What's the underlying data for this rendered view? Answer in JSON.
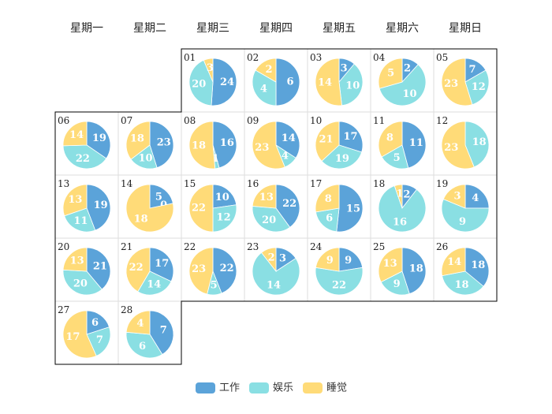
{
  "chart_data": {
    "type": "pie",
    "title": "",
    "weekdays": [
      "星期一",
      "星期二",
      "星期三",
      "星期四",
      "星期五",
      "星期六",
      "星期日"
    ],
    "legend_position": "bottom-center",
    "series": [
      {
        "name": "工作",
        "color": "#5BA3D9"
      },
      {
        "name": "娱乐",
        "color": "#8ADFE3"
      },
      {
        "name": "睡觉",
        "color": "#FFDB78"
      }
    ],
    "days": [
      {
        "day": "01",
        "values": [
          24,
          20,
          3
        ]
      },
      {
        "day": "02",
        "values": [
          6,
          4,
          2
        ]
      },
      {
        "day": "03",
        "values": [
          3,
          10,
          14
        ]
      },
      {
        "day": "04",
        "values": [
          2,
          10,
          5
        ]
      },
      {
        "day": "05",
        "values": [
          7,
          12,
          23
        ]
      },
      {
        "day": "06",
        "values": [
          19,
          22,
          14
        ]
      },
      {
        "day": "07",
        "values": [
          23,
          10,
          18
        ]
      },
      {
        "day": "08",
        "values": [
          16,
          1,
          18
        ]
      },
      {
        "day": "09",
        "values": [
          14,
          4,
          23
        ]
      },
      {
        "day": "10",
        "values": [
          17,
          19,
          21
        ]
      },
      {
        "day": "11",
        "values": [
          11,
          5,
          8
        ]
      },
      {
        "day": "12",
        "values": [
          0,
          18,
          23
        ]
      },
      {
        "day": "13",
        "values": [
          19,
          11,
          13
        ]
      },
      {
        "day": "14",
        "values": [
          5,
          0,
          18
        ]
      },
      {
        "day": "15",
        "values": [
          10,
          12,
          22
        ]
      },
      {
        "day": "16",
        "values": [
          22,
          20,
          13
        ]
      },
      {
        "day": "17",
        "values": [
          15,
          6,
          8
        ]
      },
      {
        "day": "18",
        "values": [
          2,
          16,
          1
        ]
      },
      {
        "day": "19",
        "values": [
          4,
          9,
          3
        ]
      },
      {
        "day": "20",
        "values": [
          21,
          20,
          13
        ]
      },
      {
        "day": "21",
        "values": [
          17,
          14,
          22
        ]
      },
      {
        "day": "22",
        "values": [
          22,
          5,
          23
        ]
      },
      {
        "day": "23",
        "values": [
          3,
          14,
          2
        ]
      },
      {
        "day": "24",
        "values": [
          9,
          22,
          9
        ]
      },
      {
        "day": "25",
        "values": [
          18,
          9,
          13
        ]
      },
      {
        "day": "26",
        "values": [
          18,
          18,
          14
        ]
      },
      {
        "day": "27",
        "values": [
          6,
          7,
          17
        ]
      },
      {
        "day": "28",
        "values": [
          7,
          6,
          4
        ]
      }
    ]
  }
}
